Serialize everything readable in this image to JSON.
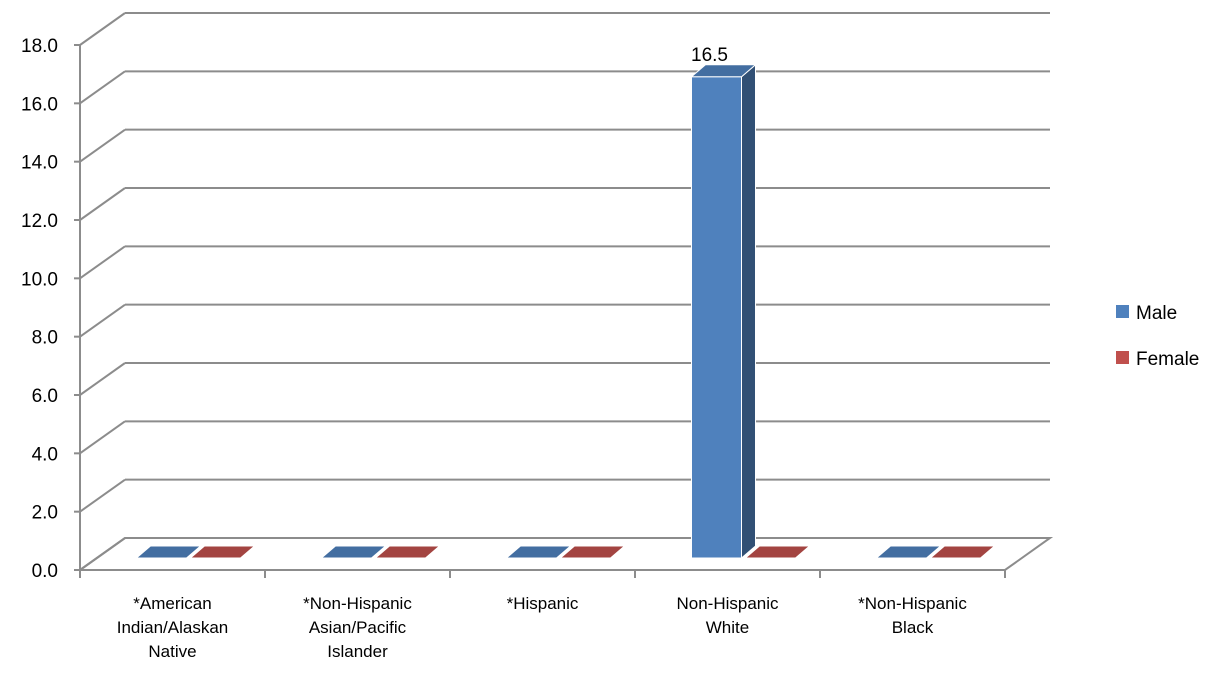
{
  "chart_data": {
    "type": "bar",
    "title": "",
    "xlabel": "",
    "ylabel": "",
    "categories": [
      [
        "*American",
        "Indian/Alaskan",
        "Native"
      ],
      [
        "*Non-Hispanic",
        "Asian/Pacific",
        "Islander"
      ],
      [
        "*Hispanic"
      ],
      [
        "Non-Hispanic",
        "White"
      ],
      [
        "*Non-Hispanic",
        "Black"
      ]
    ],
    "series": [
      {
        "name": "Male",
        "values": [
          0,
          0,
          0,
          16.5,
          0
        ],
        "color": "#4f81bd"
      },
      {
        "name": "Female",
        "values": [
          0,
          0,
          0,
          0,
          0
        ],
        "color": "#c0504d"
      }
    ],
    "data_labels": [
      {
        "series": 0,
        "index": 3,
        "text": "16.5"
      }
    ],
    "ylim": [
      0,
      18
    ],
    "yticks": [
      "0.0",
      "2.0",
      "4.0",
      "6.0",
      "8.0",
      "10.0",
      "12.0",
      "14.0",
      "16.0",
      "18.0"
    ],
    "grid": true,
    "legend": "right",
    "style": "3d-clustered-column"
  }
}
